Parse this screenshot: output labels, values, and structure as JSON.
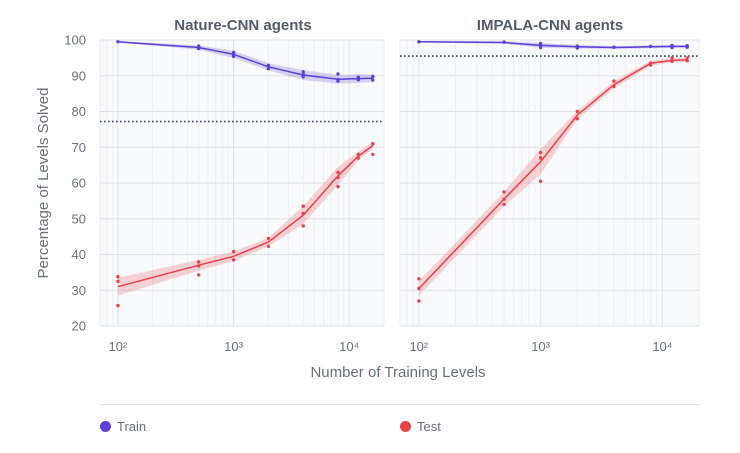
{
  "chart_data": [
    {
      "type": "line",
      "title": "Nature-CNN agents",
      "xlabel": "Number of Training Levels",
      "ylabel": "Percentage of Levels Solved",
      "xscale": "log",
      "xlim": [
        70,
        20000
      ],
      "ylim": [
        20,
        100
      ],
      "xticks": [
        100,
        1000,
        10000
      ],
      "xtick_labels": [
        "10²",
        "10³",
        "10⁴"
      ],
      "yticks": [
        20,
        30,
        40,
        50,
        60,
        70,
        80,
        90,
        100
      ],
      "grid": true,
      "reference_line": 77.2,
      "series": [
        {
          "name": "Train",
          "color": "#5b3fd8",
          "x": [
            100,
            500,
            1000,
            2000,
            4000,
            8000,
            12000,
            16000
          ],
          "y": [
            99.5,
            97.9,
            96.0,
            92.5,
            90.2,
            89.0,
            89.2,
            89.3
          ],
          "band_low": [
            99.3,
            97.3,
            95.0,
            91.5,
            88.8,
            87.8,
            88.0,
            88.2
          ],
          "band_high": [
            99.7,
            98.5,
            97.0,
            93.5,
            91.6,
            90.2,
            90.4,
            90.4
          ],
          "runs": [
            [
              100,
              99.5
            ],
            [
              500,
              98.3
            ],
            [
              500,
              97.6
            ],
            [
              1000,
              96.5
            ],
            [
              1000,
              95.4
            ],
            [
              1000,
              95.9
            ],
            [
              2000,
              92.9
            ],
            [
              2000,
              92.0
            ],
            [
              4000,
              91.1
            ],
            [
              4000,
              89.7
            ],
            [
              4000,
              90.3
            ],
            [
              8000,
              88.5
            ],
            [
              8000,
              90.5
            ],
            [
              8000,
              88.9
            ],
            [
              12000,
              89.6
            ],
            [
              12000,
              88.9
            ],
            [
              16000,
              89.8
            ],
            [
              16000,
              88.8
            ]
          ]
        },
        {
          "name": "Test",
          "color": "#e8414a",
          "x": [
            100,
            500,
            1000,
            2000,
            4000,
            8000,
            12000,
            16000
          ],
          "y": [
            31.0,
            37.0,
            39.5,
            43.5,
            51.0,
            62.0,
            67.5,
            70.5
          ],
          "band_low": [
            28.5,
            35.5,
            38.2,
            42.3,
            48.5,
            59.5,
            66.3,
            69.5
          ],
          "band_high": [
            33.5,
            38.5,
            40.8,
            44.7,
            53.5,
            64.5,
            68.7,
            71.5
          ],
          "runs": [
            [
              100,
              33.8
            ],
            [
              100,
              25.7
            ],
            [
              100,
              32.5
            ],
            [
              500,
              37.9
            ],
            [
              500,
              34.3
            ],
            [
              500,
              36.8
            ],
            [
              1000,
              40.8
            ],
            [
              1000,
              38.5
            ],
            [
              2000,
              44.5
            ],
            [
              2000,
              42.3
            ],
            [
              4000,
              53.5
            ],
            [
              4000,
              48.0
            ],
            [
              4000,
              51.5
            ],
            [
              8000,
              63.0
            ],
            [
              8000,
              59.0
            ],
            [
              8000,
              61.5
            ],
            [
              12000,
              68.0
            ],
            [
              12000,
              67.0
            ],
            [
              16000,
              71.0
            ],
            [
              16000,
              68.0
            ]
          ]
        }
      ]
    },
    {
      "type": "line",
      "title": "IMPALA-CNN agents",
      "xlabel": "Number of Training Levels",
      "ylabel": "Percentage of Levels Solved",
      "xscale": "log",
      "xlim": [
        70,
        20000
      ],
      "ylim": [
        20,
        100
      ],
      "xticks": [
        100,
        1000,
        10000
      ],
      "xtick_labels": [
        "10²",
        "10³",
        "10⁴"
      ],
      "yticks": [
        20,
        30,
        40,
        50,
        60,
        70,
        80,
        90,
        100
      ],
      "grid": true,
      "reference_line": 95.5,
      "series": [
        {
          "name": "Train",
          "color": "#5b3fd8",
          "x": [
            100,
            500,
            1000,
            2000,
            4000,
            8000,
            12000,
            16000
          ],
          "y": [
            99.5,
            99.3,
            98.5,
            98.1,
            97.9,
            98.1,
            98.2,
            98.2
          ],
          "band_low": [
            99.3,
            99.0,
            97.8,
            97.6,
            97.5,
            97.7,
            97.8,
            97.8
          ],
          "band_high": [
            99.7,
            99.6,
            99.2,
            98.6,
            98.3,
            98.5,
            98.6,
            98.6
          ],
          "runs": [
            [
              100,
              99.5
            ],
            [
              500,
              99.4
            ],
            [
              1000,
              99.0
            ],
            [
              1000,
              97.9
            ],
            [
              2000,
              98.3
            ],
            [
              2000,
              97.8
            ],
            [
              4000,
              98.0
            ],
            [
              8000,
              98.2
            ],
            [
              12000,
              98.5
            ],
            [
              12000,
              97.9
            ],
            [
              16000,
              98.4
            ],
            [
              16000,
              98.0
            ]
          ]
        },
        {
          "name": "Test",
          "color": "#e8414a",
          "x": [
            100,
            500,
            1000,
            2000,
            4000,
            8000,
            12000,
            16000
          ],
          "y": [
            30.5,
            55.5,
            66.0,
            79.0,
            87.5,
            93.5,
            94.3,
            94.5
          ],
          "band_low": [
            28.5,
            53.5,
            62.5,
            77.8,
            86.5,
            92.8,
            93.7,
            93.9
          ],
          "band_high": [
            32.5,
            57.5,
            69.5,
            80.2,
            88.5,
            94.2,
            94.9,
            95.1
          ],
          "runs": [
            [
              100,
              33.2
            ],
            [
              100,
              27.0
            ],
            [
              100,
              30.5
            ],
            [
              500,
              57.5
            ],
            [
              500,
              54.0
            ],
            [
              500,
              55.5
            ],
            [
              1000,
              68.5
            ],
            [
              1000,
              60.5
            ],
            [
              1000,
              67.0
            ],
            [
              2000,
              80.0
            ],
            [
              2000,
              78.0
            ],
            [
              4000,
              88.5
            ],
            [
              4000,
              87.0
            ],
            [
              8000,
              93.5
            ],
            [
              8000,
              93.0
            ],
            [
              12000,
              95.0
            ],
            [
              12000,
              94.0
            ],
            [
              16000,
              95.0
            ],
            [
              16000,
              94.2
            ]
          ]
        }
      ]
    }
  ],
  "legend": {
    "items": [
      {
        "label": "Train",
        "color": "#5b3fd8"
      },
      {
        "label": "Test",
        "color": "#e8414a"
      }
    ]
  }
}
